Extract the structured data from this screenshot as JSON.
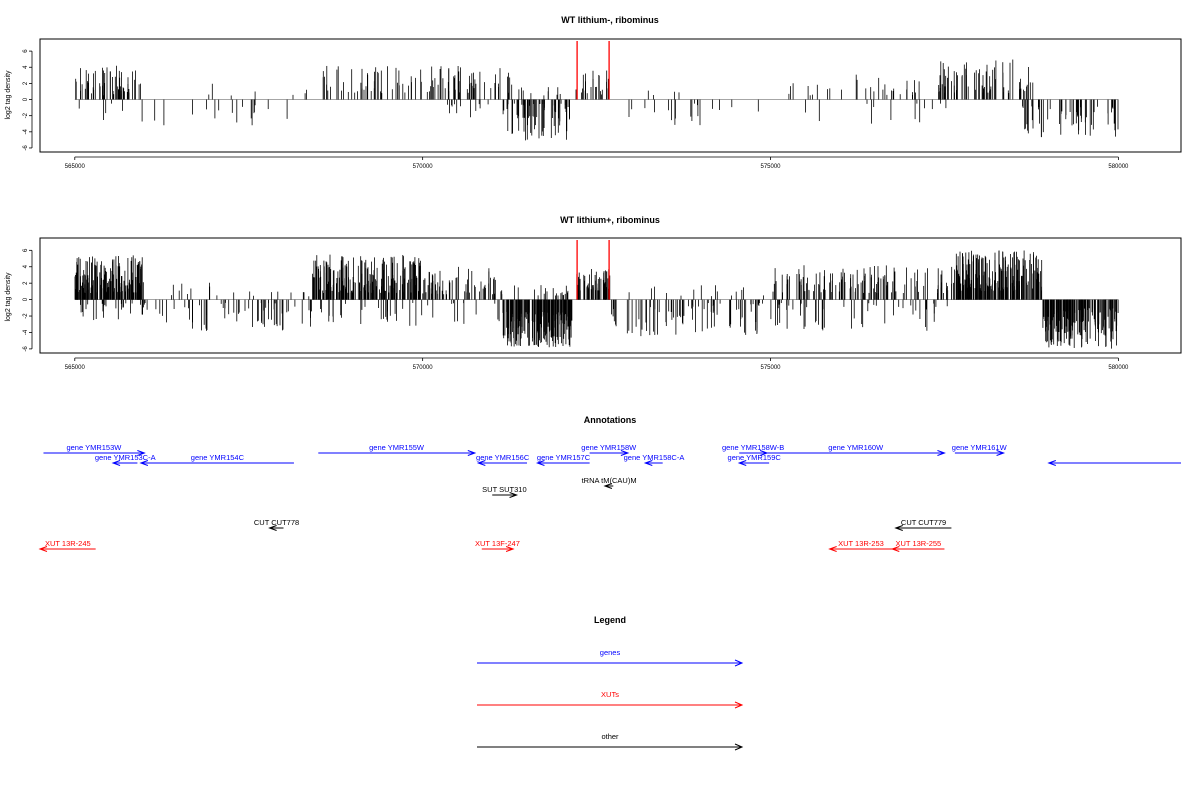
{
  "colors": {
    "genes": "#0000ff",
    "XUTs": "#ff0000",
    "other": "#000000",
    "highlight": "#ff0000"
  },
  "chart_data": [
    {
      "type": "bar",
      "title": "WT lithium-, ribominus",
      "ylabel": "log2 tag density",
      "xlim": [
        564500,
        580900
      ],
      "ylim": [
        -6.5,
        7.5
      ],
      "xticks": [
        565000,
        570000,
        575000,
        580000
      ],
      "xtick_labels": [
        "565000",
        "570000",
        "575000",
        "580000"
      ],
      "yticks": [
        -6,
        -4,
        -2,
        0,
        2,
        4,
        6
      ],
      "ytick_labels": [
        "-6",
        "-4",
        "-2",
        "0",
        "2",
        "4",
        "6"
      ],
      "density_regions": [
        {
          "start": 565000,
          "end": 565950,
          "sign": 1,
          "count": 55,
          "min": 0.5,
          "max": 4.2
        },
        {
          "start": 565050,
          "end": 566600,
          "sign": -1,
          "count": 8,
          "min": 0.5,
          "max": 3.2
        },
        {
          "start": 566500,
          "end": 568100,
          "sign": -1,
          "count": 14,
          "min": 0.5,
          "max": 3.5
        },
        {
          "start": 566800,
          "end": 568100,
          "sign": 1,
          "count": 4,
          "min": 0.5,
          "max": 2.2
        },
        {
          "start": 568100,
          "end": 568400,
          "sign": 1,
          "count": 3,
          "min": 0.5,
          "max": 1.6
        },
        {
          "start": 568500,
          "end": 571300,
          "sign": 1,
          "count": 95,
          "min": 0.8,
          "max": 4.2
        },
        {
          "start": 570350,
          "end": 571050,
          "sign": -1,
          "count": 12,
          "min": 0.5,
          "max": 2.4
        },
        {
          "start": 571150,
          "end": 572150,
          "sign": -1,
          "count": 70,
          "min": 0.5,
          "max": 5.2
        },
        {
          "start": 571300,
          "end": 572100,
          "sign": 1,
          "count": 10,
          "min": 0.5,
          "max": 1.8
        },
        {
          "start": 572200,
          "end": 572700,
          "sign": 1,
          "count": 22,
          "min": 0.6,
          "max": 3.6
        },
        {
          "start": 572750,
          "end": 574000,
          "sign": -1,
          "count": 14,
          "min": 0.5,
          "max": 3.3
        },
        {
          "start": 572900,
          "end": 573700,
          "sign": 1,
          "count": 4,
          "min": 0.5,
          "max": 1.2
        },
        {
          "start": 574050,
          "end": 574900,
          "sign": -1,
          "count": 4,
          "min": 0.5,
          "max": 1.6
        },
        {
          "start": 575100,
          "end": 577200,
          "sign": 1,
          "count": 30,
          "min": 0.5,
          "max": 3.2
        },
        {
          "start": 575500,
          "end": 577300,
          "sign": -1,
          "count": 9,
          "min": 0.5,
          "max": 3.4
        },
        {
          "start": 577400,
          "end": 578800,
          "sign": 1,
          "count": 70,
          "min": 0.8,
          "max": 5.2
        },
        {
          "start": 577100,
          "end": 577600,
          "sign": -1,
          "count": 4,
          "min": 0.5,
          "max": 1.5
        },
        {
          "start": 578600,
          "end": 580000,
          "sign": -1,
          "count": 55,
          "min": 0.8,
          "max": 4.8
        }
      ],
      "highlights": [
        572220,
        572680
      ]
    },
    {
      "type": "bar",
      "title": "WT lithium+, ribominus",
      "ylabel": "log2 tag density",
      "xlim": [
        564500,
        580900
      ],
      "ylim": [
        -6.5,
        7.5
      ],
      "xticks": [
        565000,
        570000,
        575000,
        580000
      ],
      "xtick_labels": [
        "565000",
        "570000",
        "575000",
        "580000"
      ],
      "yticks": [
        -6,
        -4,
        -2,
        0,
        2,
        4,
        6
      ],
      "ytick_labels": [
        "-6",
        "-4",
        "-2",
        "0",
        "2",
        "4",
        "6"
      ],
      "density_regions": [
        {
          "start": 565000,
          "end": 566000,
          "sign": 1,
          "count": 170,
          "min": 0.8,
          "max": 5.5
        },
        {
          "start": 565000,
          "end": 566000,
          "sign": -1,
          "count": 30,
          "min": 0.4,
          "max": 2.5
        },
        {
          "start": 566000,
          "end": 568400,
          "sign": -1,
          "count": 60,
          "min": 0.4,
          "max": 4.2
        },
        {
          "start": 566000,
          "end": 568400,
          "sign": 1,
          "count": 18,
          "min": 0.4,
          "max": 2.4
        },
        {
          "start": 568400,
          "end": 570000,
          "sign": 1,
          "count": 190,
          "min": 0.8,
          "max": 5.5
        },
        {
          "start": 570000,
          "end": 571150,
          "sign": 1,
          "count": 60,
          "min": 0.5,
          "max": 4.0
        },
        {
          "start": 568400,
          "end": 571150,
          "sign": -1,
          "count": 40,
          "min": 0.4,
          "max": 3.2
        },
        {
          "start": 571150,
          "end": 572150,
          "sign": -1,
          "count": 170,
          "min": 1.5,
          "max": 5.8
        },
        {
          "start": 571300,
          "end": 572100,
          "sign": 1,
          "count": 20,
          "min": 0.4,
          "max": 2.0
        },
        {
          "start": 572200,
          "end": 572700,
          "sign": 1,
          "count": 60,
          "min": 1.0,
          "max": 3.8
        },
        {
          "start": 572700,
          "end": 574900,
          "sign": -1,
          "count": 80,
          "min": 0.4,
          "max": 4.5
        },
        {
          "start": 572800,
          "end": 574900,
          "sign": 1,
          "count": 15,
          "min": 0.4,
          "max": 1.8
        },
        {
          "start": 575000,
          "end": 577600,
          "sign": 1,
          "count": 120,
          "min": 0.8,
          "max": 4.2
        },
        {
          "start": 575000,
          "end": 577600,
          "sign": -1,
          "count": 50,
          "min": 0.4,
          "max": 3.8
        },
        {
          "start": 577600,
          "end": 578900,
          "sign": 1,
          "count": 190,
          "min": 1.0,
          "max": 6.0
        },
        {
          "start": 578900,
          "end": 580000,
          "sign": -1,
          "count": 170,
          "min": 1.0,
          "max": 6.0
        }
      ],
      "highlights": [
        572220,
        572680
      ]
    }
  ],
  "annotations": {
    "title": "Annotations",
    "xlim": [
      564500,
      580900
    ],
    "features": [
      {
        "label": "gene YMR153W",
        "type": "genes",
        "start": 564550,
        "end": 566000,
        "strand": "+",
        "row": 0
      },
      {
        "label": "gene YMR153C-A",
        "type": "genes",
        "start": 565550,
        "end": 565900,
        "strand": "-",
        "row": 1
      },
      {
        "label": "gene YMR154C",
        "type": "genes",
        "start": 565950,
        "end": 568150,
        "strand": "-",
        "row": 1
      },
      {
        "label": "gene YMR155W",
        "type": "genes",
        "start": 568500,
        "end": 570750,
        "strand": "+",
        "row": 0
      },
      {
        "label": "gene YMR156C",
        "type": "genes",
        "start": 570800,
        "end": 571500,
        "strand": "-",
        "row": 1
      },
      {
        "label": "gene YMR157C",
        "type": "genes",
        "start": 571650,
        "end": 572400,
        "strand": "-",
        "row": 1
      },
      {
        "label": "gene YMR158W",
        "type": "genes",
        "start": 572400,
        "end": 572950,
        "strand": "+",
        "row": 0
      },
      {
        "label": "gene YMR158C-A",
        "type": "genes",
        "start": 573200,
        "end": 573450,
        "strand": "-",
        "row": 1
      },
      {
        "label": "gene YMR158W-B",
        "type": "genes",
        "start": 574550,
        "end": 574950,
        "strand": "+",
        "row": 0
      },
      {
        "label": "gene YMR159C",
        "type": "genes",
        "start": 574550,
        "end": 574980,
        "strand": "-",
        "row": 1
      },
      {
        "label": "gene YMR160W",
        "type": "genes",
        "start": 574950,
        "end": 577500,
        "strand": "+",
        "row": 0
      },
      {
        "label": "gene YMR161W",
        "type": "genes",
        "start": 577650,
        "end": 578350,
        "strand": "+",
        "row": 0
      },
      {
        "label": "",
        "type": "genes",
        "start": 579000,
        "end": 580900,
        "strand": "-",
        "row": 1
      },
      {
        "label": "tRNA tM(CAU)M",
        "type": "other",
        "start": 572620,
        "end": 572740,
        "strand": "-",
        "row": 2
      },
      {
        "label": "SUT SUT310",
        "type": "other",
        "start": 571000,
        "end": 571350,
        "strand": "+",
        "row": 3
      },
      {
        "label": "CUT CUT778",
        "type": "other",
        "start": 567800,
        "end": 568000,
        "strand": "-",
        "row": 4
      },
      {
        "label": "CUT CUT779",
        "type": "other",
        "start": 576800,
        "end": 577600,
        "strand": "-",
        "row": 4
      },
      {
        "label": "XUT 13R-245",
        "type": "XUTs",
        "start": 564500,
        "end": 565300,
        "strand": "-",
        "row": 5
      },
      {
        "label": "XUT 13F-247",
        "type": "XUTs",
        "start": 570850,
        "end": 571300,
        "strand": "+",
        "row": 5
      },
      {
        "label": "XUT 13R-253",
        "type": "XUTs",
        "start": 575850,
        "end": 576750,
        "strand": "-",
        "row": 5
      },
      {
        "label": "XUT 13R-255",
        "type": "XUTs",
        "start": 576750,
        "end": 577500,
        "strand": "-",
        "row": 5
      }
    ]
  },
  "legend": {
    "title": "Legend",
    "items": [
      {
        "label": "genes",
        "type": "genes"
      },
      {
        "label": "XUTs",
        "type": "XUTs"
      },
      {
        "label": "other",
        "type": "other"
      }
    ]
  }
}
